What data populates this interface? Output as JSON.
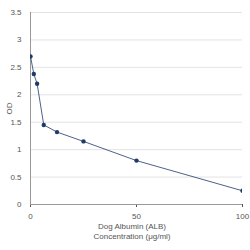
{
  "chart_data": {
    "type": "line",
    "x_label": "Dog Albumin (ALB)\nConcentration (μg/ml)",
    "y_label": "OD",
    "x": [
      0,
      1.56,
      3.125,
      6.25,
      12.5,
      25,
      50,
      100
    ],
    "values": [
      2.7,
      2.38,
      2.2,
      1.45,
      1.32,
      1.15,
      0.8,
      0.25
    ],
    "color": "#1f3a68",
    "marker": "circle",
    "xlim": [
      0,
      100
    ],
    "xticks": [
      0,
      50,
      100
    ],
    "ylim": [
      0,
      3.5
    ],
    "yticks": [
      0,
      0.5,
      1,
      1.5,
      2,
      2.5,
      3,
      3.5
    ],
    "grid": true
  }
}
